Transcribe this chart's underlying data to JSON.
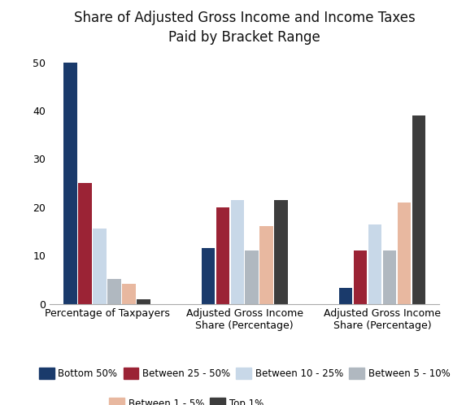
{
  "title": "Share of Adjusted Gross Income and Income Taxes\nPaid by Bracket Range",
  "categories": [
    "Percentage of Taxpayers",
    "Adjusted Gross Income\nShare (Percentage)",
    "Adjusted Gross Income\nShare (Percentage)"
  ],
  "series": {
    "Bottom 50%": [
      50,
      11.5,
      3.3
    ],
    "Between 25 - 50%": [
      25,
      20,
      11
    ],
    "Between 10 - 25%": [
      15.5,
      21.5,
      16.5
    ],
    "Between 5 - 10%": [
      5.2,
      11,
      11
    ],
    "Between 1 - 5%": [
      4.2,
      16,
      21
    ],
    "Top 1%": [
      1.0,
      21.5,
      39
    ]
  },
  "colors": {
    "Bottom 50%": "#1a3a6b",
    "Between 25 - 50%": "#9b2335",
    "Between 10 - 25%": "#c8d8e8",
    "Between 5 - 10%": "#b0b8c0",
    "Between 1 - 5%": "#e8b8a0",
    "Top 1%": "#3d3d3d"
  },
  "ylim": [
    0,
    52
  ],
  "yticks": [
    0,
    10,
    20,
    30,
    40,
    50
  ],
  "group_positions": [
    0.42,
    1.55,
    2.68
  ],
  "group_width": 0.72,
  "bar_gap": 0.01,
  "title_fontsize": 12,
  "tick_fontsize": 9,
  "legend_fontsize": 8.5,
  "figsize": [
    5.57,
    4.98
  ],
  "dpi": 100
}
